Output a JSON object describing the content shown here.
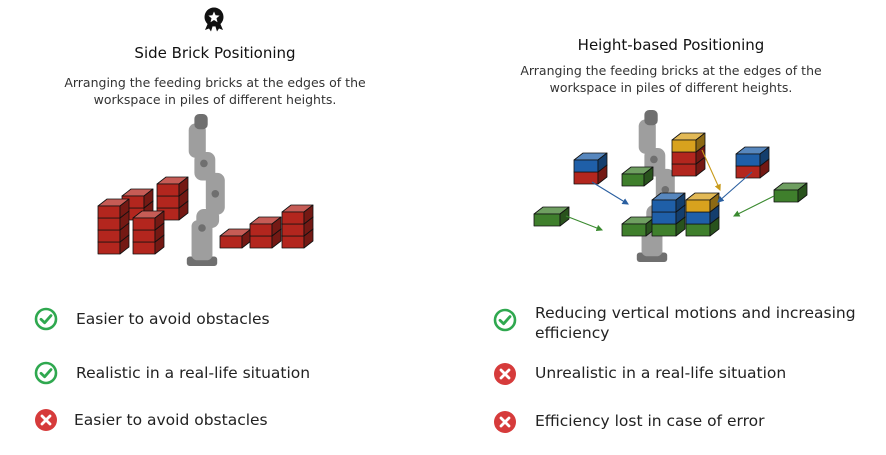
{
  "colors": {
    "red": "#b3261e",
    "blue": "#1f5fa8",
    "yellow": "#d8a21e",
    "green": "#3f7f2c",
    "check": "#2fa84f",
    "cross": "#d63b3b",
    "robot": "#9e9e9e"
  },
  "left": {
    "badge_icon": "award-ribbon-icon",
    "title": "Side Brick Positioning",
    "subtitle_line1": "Arranging the feeding bricks at the edges of the",
    "subtitle_line2": "workspace in piles of different heights.",
    "items": [
      {
        "status": "pro",
        "icon": "check-circle-icon",
        "text": "Easier to avoid obstacles"
      },
      {
        "status": "pro",
        "icon": "check-circle-icon",
        "text": "Realistic in a real-life situation"
      },
      {
        "status": "con",
        "icon": "x-circle-icon",
        "text": "Easier to avoid obstacles"
      }
    ]
  },
  "right": {
    "title": "Height-based Positioning",
    "subtitle_line1": "Arranging the feeding bricks at the edges of the",
    "subtitle_line2": "workspace in piles of different heights.",
    "items": [
      {
        "status": "pro",
        "icon": "check-circle-icon",
        "text_line1": "Reducing vertical motions and increasing",
        "text_line2": "efficiency"
      },
      {
        "status": "con",
        "icon": "x-circle-icon",
        "text": "Unrealistic in a real-life situation"
      },
      {
        "status": "con",
        "icon": "x-circle-icon",
        "text": "Efficiency lost in case of error"
      }
    ]
  }
}
